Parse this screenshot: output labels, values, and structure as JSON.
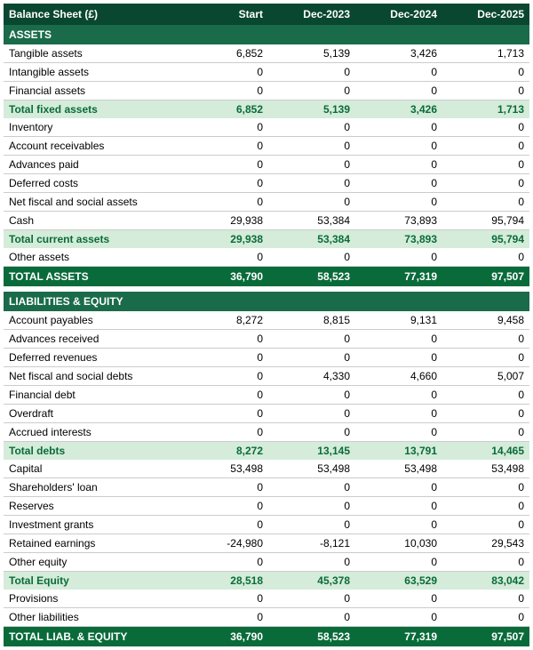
{
  "title": "Balance Sheet (£)",
  "columns": [
    "Start",
    "Dec-2023",
    "Dec-2024",
    "Dec-2025"
  ],
  "sections": [
    {
      "name": "ASSETS",
      "rows": [
        {
          "label": "Tangible assets",
          "vals": [
            "6,852",
            "5,139",
            "3,426",
            "1,713"
          ]
        },
        {
          "label": "Intangible assets",
          "vals": [
            "0",
            "0",
            "0",
            "0"
          ]
        },
        {
          "label": "Financial assets",
          "vals": [
            "0",
            "0",
            "0",
            "0"
          ]
        }
      ],
      "subtotal1": {
        "label": "Total fixed assets",
        "vals": [
          "6,852",
          "5,139",
          "3,426",
          "1,713"
        ]
      },
      "rows2": [
        {
          "label": "Inventory",
          "vals": [
            "0",
            "0",
            "0",
            "0"
          ]
        },
        {
          "label": "Account receivables",
          "vals": [
            "0",
            "0",
            "0",
            "0"
          ]
        },
        {
          "label": "Advances paid",
          "vals": [
            "0",
            "0",
            "0",
            "0"
          ]
        },
        {
          "label": "Deferred costs",
          "vals": [
            "0",
            "0",
            "0",
            "0"
          ]
        },
        {
          "label": "Net fiscal and social assets",
          "vals": [
            "0",
            "0",
            "0",
            "0"
          ]
        },
        {
          "label": "Cash",
          "vals": [
            "29,938",
            "53,384",
            "73,893",
            "95,794"
          ]
        }
      ],
      "subtotal2": {
        "label": "Total current assets",
        "vals": [
          "29,938",
          "53,384",
          "73,893",
          "95,794"
        ]
      },
      "rows3": [
        {
          "label": "Other assets",
          "vals": [
            "0",
            "0",
            "0",
            "0"
          ]
        }
      ],
      "total": {
        "label": "TOTAL ASSETS",
        "vals": [
          "36,790",
          "58,523",
          "77,319",
          "97,507"
        ]
      }
    },
    {
      "name": "LIABILITIES & EQUITY",
      "rows": [
        {
          "label": "Account payables",
          "vals": [
            "8,272",
            "8,815",
            "9,131",
            "9,458"
          ]
        },
        {
          "label": "Advances received",
          "vals": [
            "0",
            "0",
            "0",
            "0"
          ]
        },
        {
          "label": "Deferred revenues",
          "vals": [
            "0",
            "0",
            "0",
            "0"
          ]
        },
        {
          "label": "Net fiscal and social debts",
          "vals": [
            "0",
            "4,330",
            "4,660",
            "5,007"
          ]
        },
        {
          "label": "Financial debt",
          "vals": [
            "0",
            "0",
            "0",
            "0"
          ]
        },
        {
          "label": "Overdraft",
          "vals": [
            "0",
            "0",
            "0",
            "0"
          ]
        },
        {
          "label": "Accrued interests",
          "vals": [
            "0",
            "0",
            "0",
            "0"
          ]
        }
      ],
      "subtotal1": {
        "label": "Total debts",
        "vals": [
          "8,272",
          "13,145",
          "13,791",
          "14,465"
        ]
      },
      "rows2": [
        {
          "label": "Capital",
          "vals": [
            "53,498",
            "53,498",
            "53,498",
            "53,498"
          ]
        },
        {
          "label": "Shareholders' loan",
          "vals": [
            "0",
            "0",
            "0",
            "0"
          ]
        },
        {
          "label": "Reserves",
          "vals": [
            "0",
            "0",
            "0",
            "0"
          ]
        },
        {
          "label": "Investment grants",
          "vals": [
            "0",
            "0",
            "0",
            "0"
          ]
        },
        {
          "label": "Retained earnings",
          "vals": [
            "-24,980",
            "-8,121",
            "10,030",
            "29,543"
          ]
        },
        {
          "label": "Other equity",
          "vals": [
            "0",
            "0",
            "0",
            "0"
          ]
        }
      ],
      "subtotal2": {
        "label": "Total Equity",
        "vals": [
          "28,518",
          "45,378",
          "63,529",
          "83,042"
        ]
      },
      "rows3": [
        {
          "label": "Provisions",
          "vals": [
            "0",
            "0",
            "0",
            "0"
          ]
        },
        {
          "label": "Other liabilities",
          "vals": [
            "0",
            "0",
            "0",
            "0"
          ]
        }
      ],
      "total": {
        "label": "TOTAL LIAB. & EQUITY",
        "vals": [
          "36,790",
          "58,523",
          "77,319",
          "97,507"
        ]
      }
    }
  ]
}
